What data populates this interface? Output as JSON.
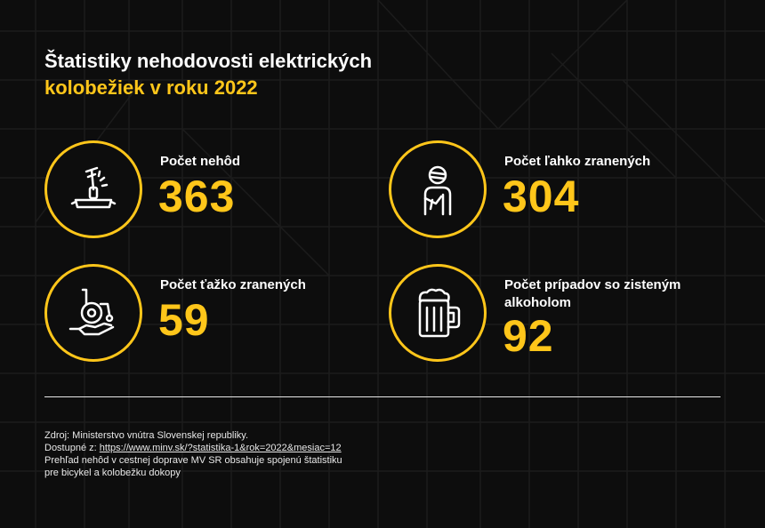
{
  "title": {
    "line1": "Štatistiky nehodovosti elektrických",
    "line2": "kolobežiek v roku 2022"
  },
  "stats": [
    {
      "label": "Počet nehôd",
      "value": "363",
      "icon": "scooter-icon"
    },
    {
      "label": "Počet ľahko zranených",
      "value": "304",
      "icon": "injured-person-icon"
    },
    {
      "label": "Počet ťažko zranených",
      "value": "59",
      "icon": "wheelchair-hand-icon"
    },
    {
      "label": "Počet prípadov so zisteným alkoholom",
      "value": "92",
      "icon": "beer-mug-icon"
    }
  ],
  "source": {
    "line1": "Zdroj: Ministerstvo vnútra Slovenskej republiky.",
    "available_prefix": "Dostupné z: ",
    "url": "https://www.minv.sk/?statistika-1&rok=2022&mesiac=12",
    "line3": "Prehľad nehôd v cestnej doprave MV SR obsahuje spojenú štatistiku",
    "line4": "pre bicykel a kolobežku dokopy"
  },
  "colors": {
    "accent": "#ffc61a",
    "background": "#0d0d0d",
    "text": "#ffffff"
  }
}
